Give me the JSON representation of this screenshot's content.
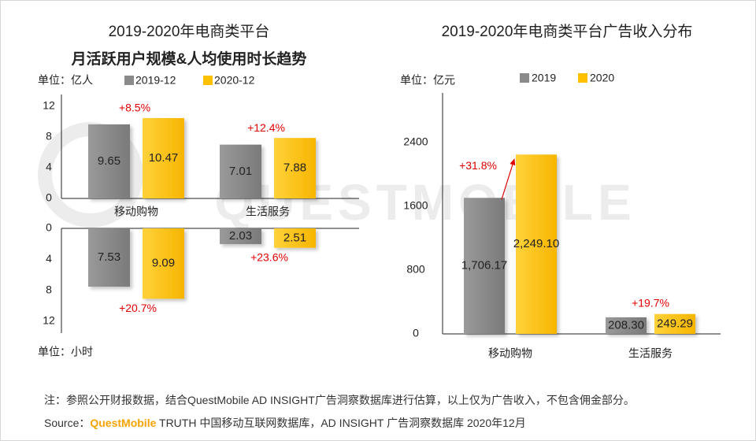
{
  "chart_data": [
    {
      "type": "bar",
      "title_lines": [
        "2019-2020年电商类平台",
        "月活跃用户规模&人均使用时长趋势"
      ],
      "legend": [
        "2019-12",
        "2020-12"
      ],
      "categories": [
        "移动购物",
        "生活服务"
      ],
      "upper": {
        "unit_label": "单位：亿人",
        "ticks": [
          "0",
          "4",
          "8",
          "12"
        ],
        "ylim": [
          0,
          12
        ],
        "series": [
          {
            "name": "2019-12",
            "values": [
              9.65,
              7.01
            ],
            "labels": [
              "9.65",
              "7.01"
            ]
          },
          {
            "name": "2020-12",
            "values": [
              10.47,
              7.88
            ],
            "labels": [
              "10.47",
              "7.88"
            ]
          }
        ],
        "growth": [
          "+8.5%",
          "+12.4%"
        ]
      },
      "lower": {
        "unit_label": "单位：小时",
        "ticks": [
          "0",
          "4",
          "8",
          "12"
        ],
        "ylim": [
          0,
          12
        ],
        "series": [
          {
            "name": "2019-12",
            "values": [
              7.53,
              2.03
            ],
            "labels": [
              "7.53",
              "2.03"
            ]
          },
          {
            "name": "2020-12",
            "values": [
              9.09,
              2.51
            ],
            "labels": [
              "9.09",
              "2.51"
            ]
          }
        ],
        "growth": [
          "+20.7%",
          "+23.6%"
        ]
      }
    },
    {
      "type": "bar",
      "title": "2019-2020年电商类平台广告收入分布",
      "unit_label": "单位：亿元",
      "legend": [
        "2019",
        "2020"
      ],
      "categories": [
        "移动购物",
        "生活服务"
      ],
      "ticks": [
        "0",
        "800",
        "1600",
        "2400"
      ],
      "ylim": [
        0,
        3200
      ],
      "series": [
        {
          "name": "2019",
          "values": [
            1706.17,
            208.3
          ],
          "labels": [
            "1,706.17",
            "208.30"
          ]
        },
        {
          "name": "2020",
          "values": [
            2249.1,
            249.29
          ],
          "labels": [
            "2,249.10",
            "249.29"
          ]
        }
      ],
      "growth": [
        "+31.8%",
        "+19.7%"
      ]
    }
  ],
  "colors": {
    "gray": "#8a8a8a",
    "gold": "#ffc000",
    "growth": "#e00000",
    "axis": "#222222",
    "watermark": "#ececec"
  },
  "watermark": "QUESTMOBILE",
  "footer": {
    "note": "注：参照公开财报数据，结合QuestMobile AD INSIGHT广告洞察数据库进行估算，以上仅为广告收入，不包含佣金部分。",
    "source_prefix": "Source：",
    "source_brand": "QuestMobile",
    "source_rest": " TRUTH 中国移动互联网数据库，AD INSIGHT 广告洞察数据库 2020年12月"
  }
}
